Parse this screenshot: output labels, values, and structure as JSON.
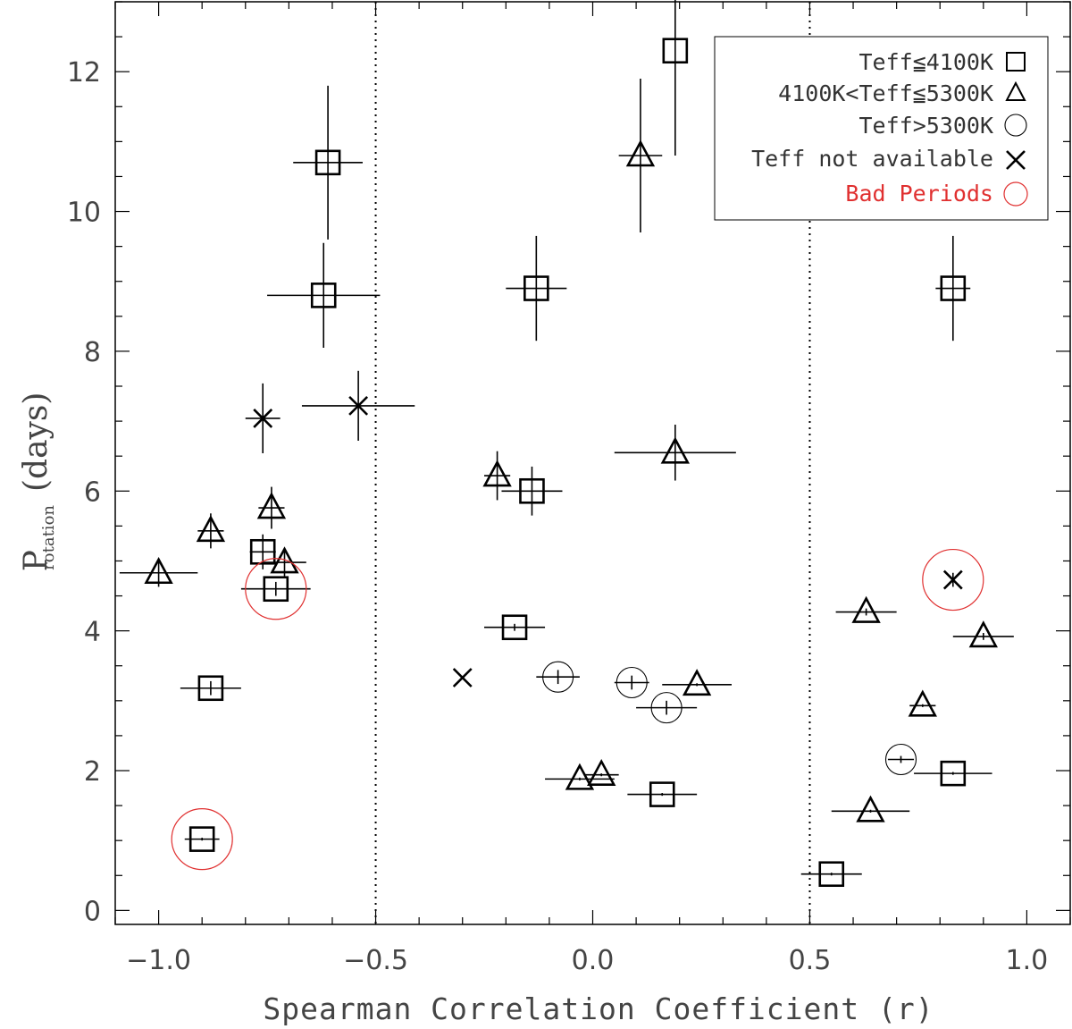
{
  "chart_data": {
    "type": "scatter",
    "xlabel": "Spearman Correlation Coefficient (r)",
    "ylabel_main": "P",
    "ylabel_sub": "rotation",
    "ylabel_units": "(days)",
    "xlim": [
      -1.1,
      1.1
    ],
    "ylim": [
      -0.2,
      13.0
    ],
    "x_ticks": [
      {
        "value": -1.0,
        "label": "−1.0"
      },
      {
        "value": -0.5,
        "label": "−0.5"
      },
      {
        "value": 0.0,
        "label": "0.0"
      },
      {
        "value": 0.5,
        "label": "0.5"
      },
      {
        "value": 1.0,
        "label": "1.0"
      }
    ],
    "y_ticks": [
      {
        "value": 0,
        "label": "0"
      },
      {
        "value": 2,
        "label": "2"
      },
      {
        "value": 4,
        "label": "4"
      },
      {
        "value": 6,
        "label": "6"
      },
      {
        "value": 8,
        "label": "8"
      },
      {
        "value": 10,
        "label": "10"
      },
      {
        "value": 12,
        "label": "12"
      }
    ],
    "vlines": [
      -0.5,
      0.5
    ],
    "legend": [
      {
        "label": "Teff≦4100K",
        "marker": "square",
        "color": "#000000"
      },
      {
        "label": "4100K<Teff≦5300K",
        "marker": "triangle",
        "color": "#000000"
      },
      {
        "label": "Teff>5300K",
        "marker": "circle",
        "color": "#000000"
      },
      {
        "label": "Teff not available",
        "marker": "x",
        "color": "#000000"
      },
      {
        "label": "Bad Periods",
        "marker": "bigcircle",
        "color": "#e03030"
      }
    ],
    "series": [
      {
        "name": "Teff≦4100K",
        "marker": "square",
        "points": [
          {
            "x": 0.19,
            "y": 12.3,
            "xerr": 0.0,
            "yerr": 1.5
          },
          {
            "x": -0.61,
            "y": 10.7,
            "xerr": 0.08,
            "yerr": 1.1
          },
          {
            "x": -0.62,
            "y": 8.8,
            "xerr": 0.13,
            "yerr": 0.75
          },
          {
            "x": -0.13,
            "y": 8.9,
            "xerr": 0.07,
            "yerr": 0.75
          },
          {
            "x": 0.83,
            "y": 8.9,
            "xerr": 0.04,
            "yerr": 0.75
          },
          {
            "x": -0.14,
            "y": 6.0,
            "xerr": 0.07,
            "yerr": 0.35
          },
          {
            "x": -0.76,
            "y": 5.13,
            "xerr": 0.03,
            "yerr": 0.25
          },
          {
            "x": -0.73,
            "y": 4.6,
            "xerr": 0.08,
            "yerr": 0.1
          },
          {
            "x": -0.18,
            "y": 4.05,
            "xerr": 0.07,
            "yerr": 0.05
          },
          {
            "x": -0.88,
            "y": 3.18,
            "xerr": 0.07,
            "yerr": 0.1
          },
          {
            "x": 0.16,
            "y": 1.66,
            "xerr": 0.08,
            "yerr": 0.02
          },
          {
            "x": 0.83,
            "y": 1.96,
            "xerr": 0.09,
            "yerr": 0.02
          },
          {
            "x": -0.9,
            "y": 1.02,
            "xerr": 0.04,
            "yerr": 0.02
          },
          {
            "x": 0.55,
            "y": 0.52,
            "xerr": 0.07,
            "yerr": 0.02
          }
        ]
      },
      {
        "name": "4100K<Teff≦5300K",
        "marker": "triangle",
        "points": [
          {
            "x": 0.11,
            "y": 10.8,
            "xerr": 0.05,
            "yerr": 1.1
          },
          {
            "x": 0.19,
            "y": 6.55,
            "xerr": 0.14,
            "yerr": 0.4
          },
          {
            "x": -0.22,
            "y": 6.22,
            "xerr": 0.03,
            "yerr": 0.35
          },
          {
            "x": -0.74,
            "y": 5.76,
            "xerr": 0.03,
            "yerr": 0.3
          },
          {
            "x": -0.88,
            "y": 5.43,
            "xerr": 0.03,
            "yerr": 0.25
          },
          {
            "x": -0.71,
            "y": 4.98,
            "xerr": 0.05,
            "yerr": 0.2
          },
          {
            "x": -1.0,
            "y": 4.83,
            "xerr": 0.09,
            "yerr": 0.2
          },
          {
            "x": 0.63,
            "y": 4.27,
            "xerr": 0.07,
            "yerr": 0.05
          },
          {
            "x": 0.9,
            "y": 3.92,
            "xerr": 0.07,
            "yerr": 0.05
          },
          {
            "x": 0.24,
            "y": 3.23,
            "xerr": 0.08,
            "yerr": 0.02
          },
          {
            "x": 0.76,
            "y": 2.93,
            "xerr": 0.03,
            "yerr": 0.02
          },
          {
            "x": -0.03,
            "y": 1.88,
            "xerr": 0.08,
            "yerr": 0.02
          },
          {
            "x": 0.02,
            "y": 1.94,
            "xerr": 0.04,
            "yerr": 0.02
          },
          {
            "x": 0.64,
            "y": 1.42,
            "xerr": 0.09,
            "yerr": 0.02
          }
        ]
      },
      {
        "name": "Teff>5300K",
        "marker": "circle",
        "points": [
          {
            "x": -0.08,
            "y": 3.34,
            "xerr": 0.05,
            "yerr": 0.1
          },
          {
            "x": 0.09,
            "y": 3.26,
            "xerr": 0.04,
            "yerr": 0.1
          },
          {
            "x": 0.17,
            "y": 2.9,
            "xerr": 0.07,
            "yerr": 0.1
          },
          {
            "x": 0.71,
            "y": 2.16,
            "xerr": 0.03,
            "yerr": 0.05
          }
        ]
      },
      {
        "name": "Teff not available",
        "marker": "x",
        "points": [
          {
            "x": -0.54,
            "y": 7.22,
            "xerr": 0.13,
            "yerr": 0.5
          },
          {
            "x": -0.76,
            "y": 7.04,
            "xerr": 0.04,
            "yerr": 0.5
          },
          {
            "x": 0.83,
            "y": 4.73,
            "xerr": 0.0,
            "yerr": 0.1
          },
          {
            "x": -0.3,
            "y": 3.33,
            "xerr": 0.0,
            "yerr": 0.0
          }
        ]
      },
      {
        "name": "Bad Periods",
        "marker": "bigcircle",
        "points": [
          {
            "x": -0.73,
            "y": 4.6
          },
          {
            "x": 0.83,
            "y": 4.73
          },
          {
            "x": -0.9,
            "y": 1.02
          }
        ]
      }
    ]
  }
}
